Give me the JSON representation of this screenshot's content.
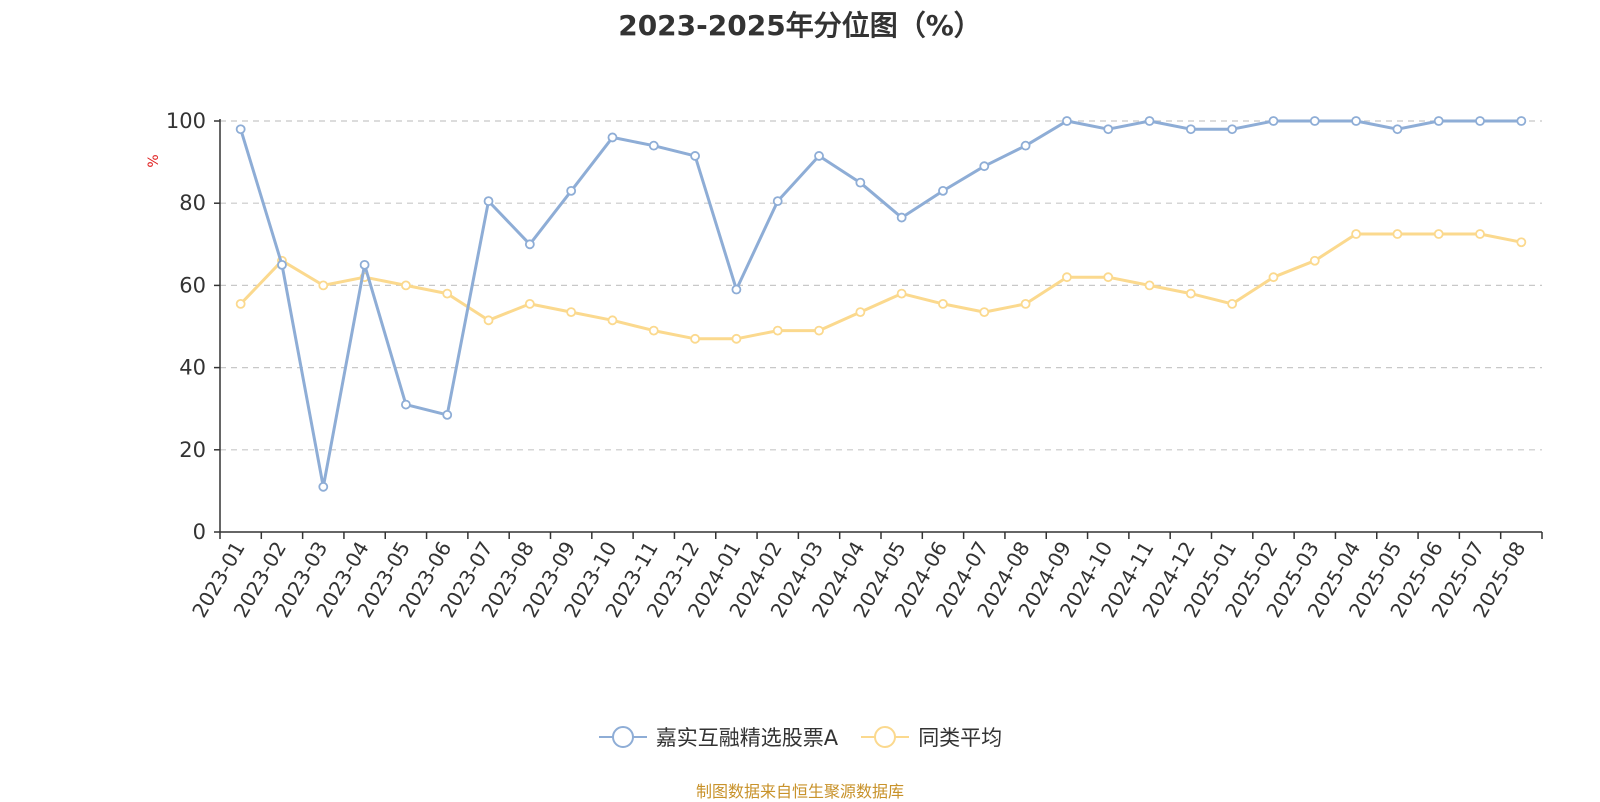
{
  "colors": {
    "series_a": "#8eadd6",
    "series_b": "#fbd98e",
    "axis": "#333333",
    "grid": "#c8c8c8",
    "ylabel": "#e02020",
    "source": "#c8922a"
  },
  "chart_data": {
    "type": "line",
    "title": "2023-2025年分位图（%）",
    "xlabel": "",
    "ylabel": "%",
    "ylim": [
      0,
      100
    ],
    "yticks": [
      0,
      20,
      40,
      60,
      80,
      100
    ],
    "grid": true,
    "legend_position": "bottom-center",
    "categories": [
      "2023-01",
      "2023-02",
      "2023-03",
      "2023-04",
      "2023-05",
      "2023-06",
      "2023-07",
      "2023-08",
      "2023-09",
      "2023-10",
      "2023-11",
      "2023-12",
      "2024-01",
      "2024-02",
      "2024-03",
      "2024-04",
      "2024-05",
      "2024-06",
      "2024-07",
      "2024-08",
      "2024-09",
      "2024-10",
      "2024-11",
      "2024-12",
      "2025-01",
      "2025-02",
      "2025-03",
      "2025-04",
      "2025-05",
      "2025-06",
      "2025-07",
      "2025-08"
    ],
    "series": [
      {
        "name": "嘉实互融精选股票A",
        "values": [
          98,
          65,
          11,
          65,
          31,
          28.5,
          80.5,
          70,
          83,
          96,
          94,
          91.5,
          59,
          80.5,
          91.5,
          85,
          76.5,
          83,
          89,
          94,
          100,
          98,
          100,
          98,
          98,
          100,
          100,
          100,
          98,
          100,
          100,
          100
        ]
      },
      {
        "name": "同类平均",
        "values": [
          55.5,
          66,
          60,
          62,
          60,
          58,
          51.5,
          55.5,
          53.5,
          51.5,
          49,
          47,
          47,
          49,
          49,
          53.5,
          58,
          55.5,
          53.5,
          55.5,
          62,
          62,
          60,
          58,
          55.5,
          62,
          66,
          72.5,
          72.5,
          72.5,
          72.5,
          70.5
        ]
      }
    ]
  },
  "legend": {
    "items": [
      "嘉实互融精选股票A",
      "同类平均"
    ]
  },
  "source": "制图数据来自恒生聚源数据库"
}
